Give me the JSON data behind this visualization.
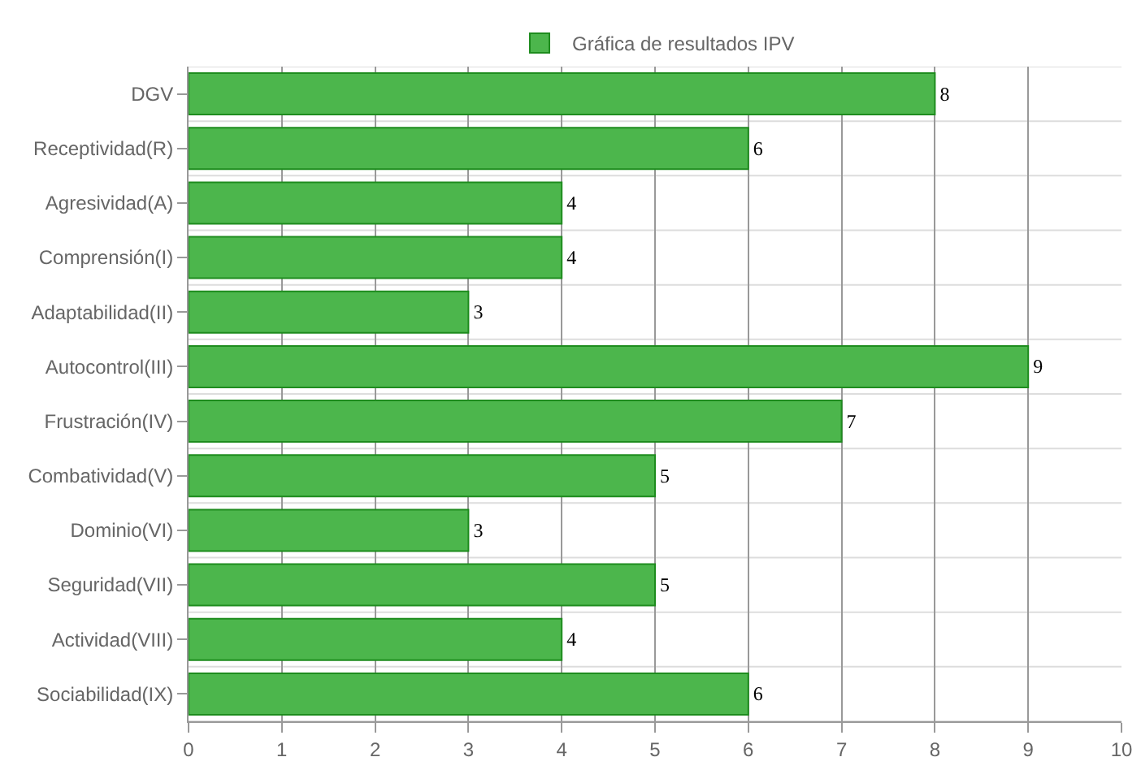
{
  "chart_data": {
    "type": "bar",
    "orientation": "horizontal",
    "categories": [
      "DGV",
      "Receptividad(R)",
      "Agresividad(A)",
      "Comprensión(I)",
      "Adaptabilidad(II)",
      "Autocontrol(III)",
      "Frustración(IV)",
      "Combatividad(V)",
      "Dominio(VI)",
      "Seguridad(VII)",
      "Actividad(VIII)",
      "Sociabilidad(IX)"
    ],
    "series": [
      {
        "name": "Gráfica de resultados IPV",
        "color": "#4cb64c",
        "values": [
          8,
          6,
          4,
          4,
          3,
          9,
          7,
          5,
          3,
          5,
          4,
          6
        ]
      }
    ],
    "xlim": [
      0,
      10
    ],
    "xticks": [
      0,
      1,
      2,
      3,
      4,
      5,
      6,
      7,
      8,
      9,
      10
    ],
    "grid": true,
    "legend": "top",
    "data_labels": true
  }
}
